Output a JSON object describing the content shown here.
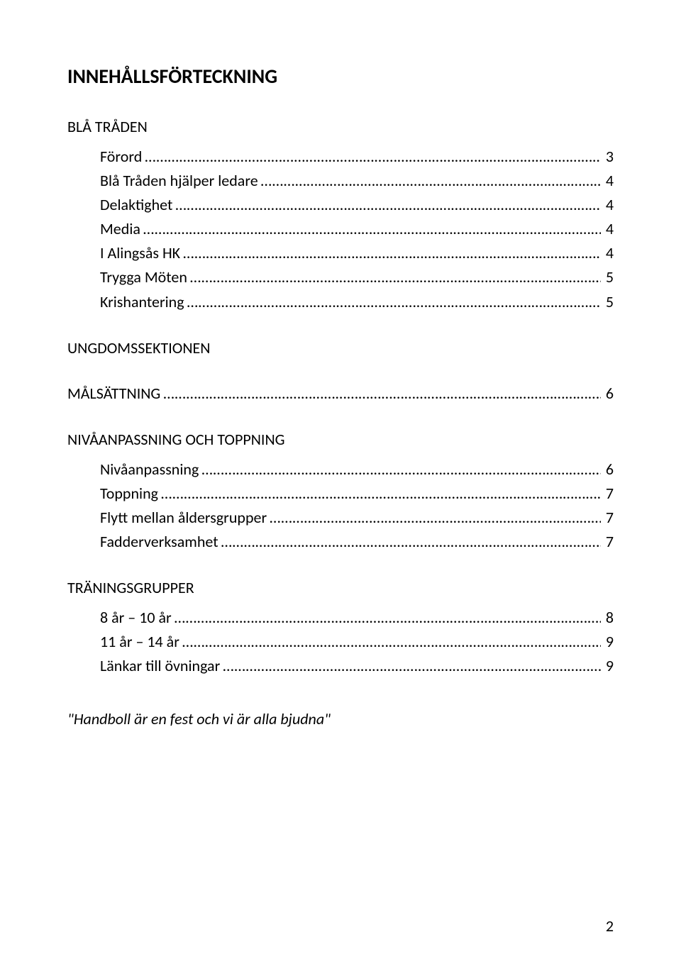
{
  "title": "INNEHÅLLSFÖRTECKNING",
  "sections": [
    {
      "heading": "BLÅ TRÅDEN",
      "heading_has_page": false,
      "entries": [
        {
          "label": "Förord",
          "dots": "……………………………………………………………………………………………………………….",
          "page": "3"
        },
        {
          "label": "Blå Tråden hjälper ledare",
          "dots": "…………………………………………………………………………………..",
          "page": "4"
        },
        {
          "label": "Delaktighet",
          "dots": "………………………………………………………………………………………………………….",
          "page": "4"
        },
        {
          "label": "Media",
          "dots": "………………………………………………………………………………………………………………….",
          "page": "4"
        },
        {
          "label": "I Alingsås HK",
          "dots": "………………………………………………………………………………………………………..",
          "page": "4"
        },
        {
          "label": "Trygga Möten",
          "dots": "……………………………………………………………………………………………………….",
          "page": "5"
        },
        {
          "label": "Krishantering",
          "dots": "………………………………………………………………………………………………………..",
          "page": "5"
        }
      ]
    },
    {
      "heading": "UNGDOMSSEKTIONEN",
      "heading_has_page": false,
      "entries": []
    },
    {
      "heading": "MÅLSÄTTNING",
      "heading_has_page": true,
      "heading_dots": "………………………………………………………………………………………………………..",
      "heading_page": "6",
      "entries": []
    },
    {
      "heading": "NIVÅANPASSNING OCH TOPPNING",
      "heading_has_page": false,
      "entries": [
        {
          "label": "Nivåanpassning",
          "dots": "……………………………………………………………………………………………………",
          "page": "6"
        },
        {
          "label": "Toppning",
          "dots": "………………………………………………………………………………………………………………..",
          "page": "7"
        },
        {
          "label": "Flytt mellan åldersgrupper",
          "dots": "………………………………………………………………………………….",
          "page": "7"
        },
        {
          "label": "Fadderverksamhet",
          "dots": "……………………………………………………………………………………………….",
          "page": "7"
        }
      ]
    },
    {
      "heading": "TRÄNINGSGRUPPER",
      "heading_has_page": false,
      "entries": [
        {
          "label": "8 år – 10 år",
          "dots": "………………………………………………………………………………………………………..",
          "page": "8"
        },
        {
          "label": "11 år – 14 år",
          "dots": "………………………………………………………………………………………………………",
          "page": "9"
        },
        {
          "label": "Länkar till övningar",
          "dots": "……………………………………………………………………………………………….",
          "page": "9"
        }
      ]
    }
  ],
  "quote": "\"Handboll är en fest och vi är alla bjudna\"",
  "page_number": "2"
}
